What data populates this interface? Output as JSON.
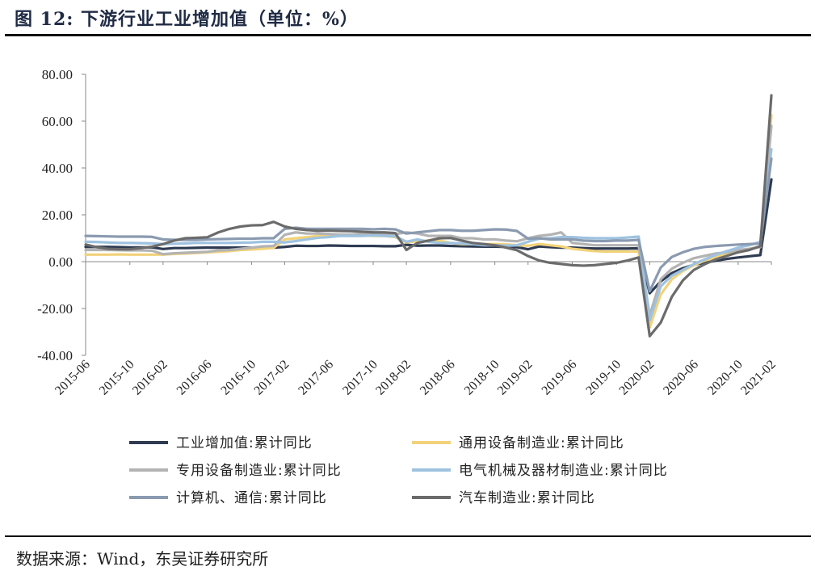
{
  "figure": {
    "title": "图 12:  下游行业工业增加值（单位：%）",
    "source": "数据来源：Wind，东吴证券研究所"
  },
  "chart_data": {
    "type": "line",
    "title": "下游行业工业增加值（单位：%）",
    "xlabel": "",
    "ylabel": "",
    "ylim": [
      -40,
      80
    ],
    "yticks": [
      "80.00",
      "60.00",
      "40.00",
      "20.00",
      "0.00",
      "-20.00",
      "-40.00"
    ],
    "yticks_values": [
      80,
      60,
      40,
      20,
      0,
      -20,
      -40
    ],
    "x": [
      "2015-06",
      "2015-07",
      "2015-08",
      "2015-09",
      "2015-10",
      "2015-11",
      "2015-12",
      "2016-02",
      "2016-03",
      "2016-04",
      "2016-05",
      "2016-06",
      "2016-07",
      "2016-08",
      "2016-09",
      "2016-10",
      "2016-11",
      "2016-12",
      "2017-02",
      "2017-03",
      "2017-04",
      "2017-05",
      "2017-06",
      "2017-07",
      "2017-08",
      "2017-09",
      "2017-10",
      "2017-11",
      "2017-12",
      "2018-02",
      "2018-03",
      "2018-04",
      "2018-05",
      "2018-06",
      "2018-07",
      "2018-08",
      "2018-09",
      "2018-10",
      "2018-11",
      "2018-12",
      "2019-02",
      "2019-03",
      "2019-04",
      "2019-05",
      "2019-06",
      "2019-07",
      "2019-08",
      "2019-09",
      "2019-10",
      "2019-11",
      "2019-12",
      "2020-02",
      "2020-03",
      "2020-04",
      "2020-05",
      "2020-06",
      "2020-07",
      "2020-08",
      "2020-09",
      "2020-10",
      "2020-11",
      "2020-12",
      "2021-02"
    ],
    "xtick_labels": [
      "2015-06",
      "2015-10",
      "2016-02",
      "2016-06",
      "2016-10",
      "2017-02",
      "2017-06",
      "2017-10",
      "2018-02",
      "2018-06",
      "2018-10",
      "2019-02",
      "2019-06",
      "2019-10",
      "2020-02",
      "2020-06",
      "2020-10",
      "2021-02"
    ],
    "series": [
      {
        "name": "工业增加值:累计同比",
        "color": "#2e3b52",
        "values": [
          6.3,
          6.3,
          6.3,
          6.2,
          6.1,
          6.1,
          6.1,
          5.4,
          5.8,
          5.8,
          5.9,
          6.0,
          6.0,
          6.0,
          6.0,
          6.0,
          6.0,
          6.0,
          6.3,
          6.8,
          6.7,
          6.7,
          6.9,
          6.8,
          6.7,
          6.7,
          6.7,
          6.6,
          6.6,
          7.2,
          6.8,
          6.9,
          6.9,
          6.7,
          6.6,
          6.5,
          6.4,
          6.4,
          6.3,
          6.2,
          5.3,
          6.5,
          6.2,
          6.0,
          6.0,
          5.8,
          5.6,
          5.6,
          5.6,
          5.6,
          5.7,
          -13.5,
          -8.4,
          -4.9,
          -2.8,
          -1.3,
          -0.4,
          0.4,
          1.2,
          1.8,
          2.3,
          2.8,
          35.1
        ]
      },
      {
        "name": "通用设备制造业:累计同比",
        "color": "#f2d27a",
        "values": [
          3.0,
          3.0,
          3.0,
          3.1,
          3.0,
          3.0,
          3.0,
          3.0,
          3.3,
          3.5,
          3.7,
          4.0,
          4.2,
          4.5,
          5.0,
          5.2,
          5.5,
          5.9,
          9.5,
          10.0,
          10.5,
          11.0,
          11.0,
          11.0,
          11.0,
          11.2,
          11.0,
          11.0,
          10.5,
          8.2,
          8.8,
          9.0,
          9.0,
          8.0,
          7.5,
          7.5,
          7.5,
          7.5,
          7.4,
          7.0,
          6.8,
          7.5,
          7.0,
          6.5,
          5.5,
          5.0,
          4.5,
          4.3,
          4.3,
          4.3,
          4.3,
          -28.0,
          -14.0,
          -7.5,
          -4.0,
          -1.5,
          0.5,
          2.0,
          3.5,
          4.5,
          5.5,
          6.2,
          62.5
        ]
      },
      {
        "name": "专用设备制造业:累计同比",
        "color": "#b3b3b3",
        "values": [
          5.0,
          5.0,
          5.0,
          4.9,
          4.8,
          4.8,
          4.7,
          3.2,
          3.6,
          3.8,
          4.0,
          4.2,
          4.8,
          5.0,
          5.5,
          6.0,
          6.5,
          6.7,
          11.5,
          12.5,
          12.0,
          12.0,
          11.8,
          11.5,
          11.5,
          11.8,
          12.0,
          11.8,
          11.8,
          12.5,
          12.0,
          11.0,
          11.0,
          11.0,
          10.0,
          10.0,
          9.5,
          9.5,
          9.0,
          8.7,
          10.0,
          11.0,
          11.5,
          12.5,
          8.0,
          7.5,
          7.0,
          7.0,
          7.0,
          7.0,
          7.0,
          -23.0,
          -7.5,
          -3.0,
          -0.5,
          1.5,
          2.5,
          3.5,
          4.0,
          5.0,
          5.5,
          6.3,
          58.0
        ]
      },
      {
        "name": "电气机械及器材制造业:累计同比",
        "color": "#9ec2e0",
        "values": [
          8.5,
          8.4,
          8.2,
          8.0,
          8.0,
          7.9,
          7.8,
          7.5,
          7.6,
          7.8,
          8.0,
          8.0,
          8.0,
          8.0,
          8.1,
          8.2,
          8.5,
          8.5,
          8.2,
          8.8,
          9.5,
          10.2,
          10.5,
          11.0,
          11.0,
          11.0,
          11.2,
          11.0,
          10.8,
          8.5,
          9.5,
          8.5,
          8.0,
          8.0,
          7.8,
          7.5,
          7.0,
          7.0,
          6.8,
          7.0,
          8.5,
          9.8,
          10.0,
          10.5,
          10.5,
          10.2,
          10.0,
          10.0,
          10.0,
          10.3,
          10.7,
          -25.0,
          -10.5,
          -6.0,
          -3.5,
          -1.0,
          1.0,
          3.0,
          4.5,
          6.0,
          7.0,
          8.5,
          48.0
        ]
      },
      {
        "name": "计算机、通信:累计同比",
        "color": "#8a9ab0",
        "values": [
          11.0,
          10.9,
          10.8,
          10.7,
          10.7,
          10.7,
          10.6,
          9.5,
          9.3,
          9.3,
          9.3,
          9.5,
          9.6,
          9.7,
          9.8,
          9.8,
          10.0,
          10.0,
          14.0,
          14.5,
          14.0,
          14.0,
          14.0,
          14.0,
          14.0,
          14.0,
          13.8,
          14.0,
          13.8,
          12.0,
          12.5,
          13.0,
          13.5,
          13.5,
          13.2,
          13.2,
          13.5,
          13.8,
          13.7,
          13.1,
          9.8,
          10.0,
          9.5,
          9.5,
          9.5,
          9.0,
          8.8,
          8.8,
          9.0,
          9.0,
          9.3,
          -12.6,
          -2.5,
          2.0,
          4.0,
          5.5,
          6.3,
          6.7,
          7.0,
          7.3,
          7.5,
          7.7,
          44.0
        ]
      },
      {
        "name": "汽车制造业:累计同比",
        "color": "#6b6b6b",
        "values": [
          7.3,
          6.2,
          5.5,
          5.3,
          5.3,
          5.8,
          6.4,
          7.5,
          9.0,
          10.0,
          10.2,
          10.4,
          12.5,
          14.0,
          15.0,
          15.5,
          15.6,
          17.0,
          15.0,
          14.0,
          13.5,
          13.2,
          13.3,
          13.1,
          13.0,
          12.8,
          12.5,
          12.5,
          12.2,
          5.0,
          8.0,
          9.0,
          10.0,
          10.1,
          9.0,
          8.0,
          7.5,
          7.0,
          6.0,
          4.9,
          2.4,
          0.5,
          -0.5,
          -1.0,
          -1.5,
          -1.7,
          -1.5,
          -1.0,
          -0.5,
          0.5,
          1.8,
          -31.8,
          -26.0,
          -15.0,
          -8.0,
          -3.5,
          -1.0,
          1.0,
          2.5,
          4.0,
          5.0,
          6.6,
          71.0
        ]
      }
    ],
    "legend": {
      "placement": "bottom",
      "columns": 2
    }
  }
}
